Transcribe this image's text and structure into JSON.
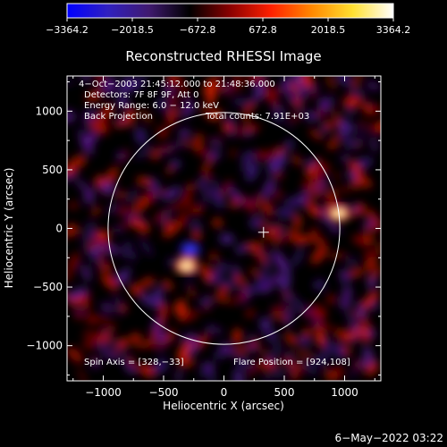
{
  "chart_data": {
    "type": "heatmap",
    "title": "Reconstructed RHESSI Image",
    "xlabel": "Heliocentric X (arcsec)",
    "ylabel": "Heliocentric Y (arcsec)",
    "xlim": [
      -1300,
      1300
    ],
    "ylim": [
      -1300,
      1300
    ],
    "x_ticks": [
      -1000,
      -500,
      0,
      500,
      1000
    ],
    "y_ticks": [
      -1000,
      -500,
      0,
      500,
      1000
    ],
    "x_tick_labels": [
      "−1000",
      "−500",
      "0",
      "500",
      "1000"
    ],
    "y_tick_labels": [
      "−1000",
      "−500",
      "0",
      "500",
      "1000"
    ],
    "colorbar": {
      "min": -3364.2,
      "max": 3364.2,
      "ticks": [
        -3364.2,
        -2018.5,
        -672.8,
        672.8,
        2018.5,
        3364.2
      ],
      "tick_labels": [
        "−3364.2",
        "−2018.5",
        "−672.8",
        "672.8",
        "2018.5",
        "3364.2"
      ],
      "colors": [
        "#0000ff",
        "#3020c0",
        "#401a70",
        "#000000",
        "#8a0000",
        "#ff2000",
        "#ff8800",
        "#ffe030",
        "#ffffff"
      ]
    },
    "info_lines": [
      "4−Oct−2003 21:45:12.000 to 21:48:36.000",
      "Detectors: 7F 8F 9F, Att 0",
      "Energy Range: 6.0 − 12.0 keV"
    ],
    "method": "Back Projection",
    "total_counts": "Total counts: 7.91E+03",
    "spin_axis": "Spin Axis = [328,−33]",
    "flare_position_label": "Flare Position = [924,108]",
    "solar_disk": {
      "center": [
        0,
        0
      ],
      "radius": 960
    },
    "spin_axis_xy": [
      328,
      -33
    ],
    "sources": [
      {
        "x": 950,
        "y": 130,
        "value": 3364.2
      },
      {
        "x": -310,
        "y": -320,
        "value": 2300
      },
      {
        "x": -280,
        "y": -180,
        "value": -2018.5
      }
    ]
  },
  "footer_date": "6−May−2022 03:22"
}
